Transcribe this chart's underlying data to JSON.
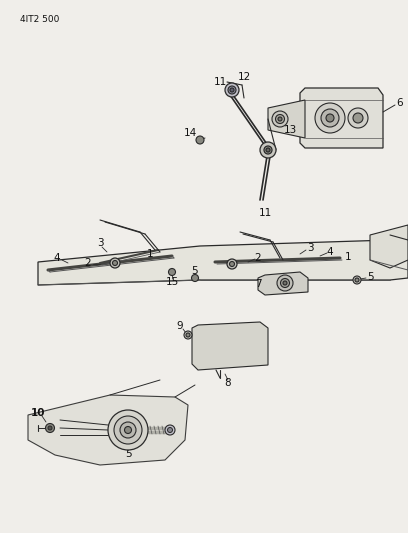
{
  "bg": "#f0eeea",
  "lc": "#2a2a2a",
  "lc2": "#555555",
  "title": "4IT2 500",
  "fs": 7.5
}
